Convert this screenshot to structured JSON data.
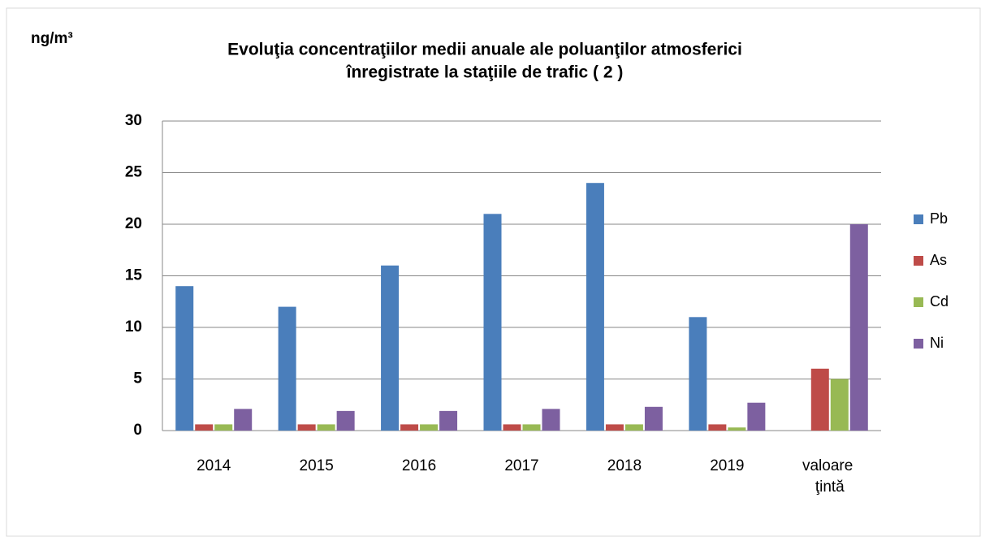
{
  "chart_data": {
    "type": "bar",
    "title": [
      "Evoluţia concentraţiilor medii anuale ale poluanţilor atmosferici",
      "înregistrate la staţiile de trafic ( 2 )"
    ],
    "y_label": "ng/m³",
    "categories": [
      "2014",
      "2015",
      "2016",
      "2017",
      "2018",
      "2019",
      "valoare ţintă"
    ],
    "series": [
      {
        "name": "Pb",
        "color": "#4a7ebb",
        "values": [
          14,
          12,
          16,
          21,
          24,
          11,
          null
        ]
      },
      {
        "name": "As",
        "color": "#be4b48",
        "values": [
          0.6,
          0.6,
          0.6,
          0.6,
          0.6,
          0.6,
          6
        ]
      },
      {
        "name": "Cd",
        "color": "#98b954",
        "values": [
          0.6,
          0.6,
          0.6,
          0.6,
          0.6,
          0.3,
          5
        ]
      },
      {
        "name": "Ni",
        "color": "#7d60a0",
        "values": [
          2.1,
          1.9,
          1.9,
          2.1,
          2.3,
          2.7,
          20
        ]
      }
    ],
    "ylim": [
      0,
      30
    ],
    "yticks": [
      0,
      5,
      10,
      15,
      20,
      25,
      30
    ],
    "grid": true,
    "legend": "right"
  }
}
